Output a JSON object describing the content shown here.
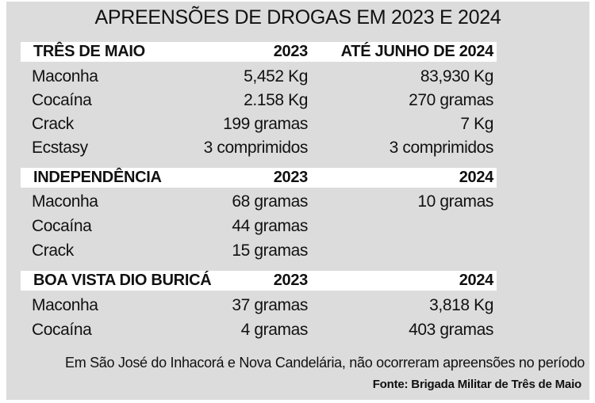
{
  "title": "APREENSÕES DE DROGAS EM 2023 E 2024",
  "sections": [
    {
      "name": "TRÊS DE MAIO",
      "col1": "2023",
      "col2": "ATÉ  JUNHO DE 2024",
      "rows": [
        {
          "drug": "Maconha",
          "v2023": "5,452 Kg",
          "v2024": "83,930 Kg"
        },
        {
          "drug": "Cocaína",
          "v2023": "2.158 Kg",
          "v2024": "270 gramas"
        },
        {
          "drug": "Crack",
          "v2023": "199 gramas",
          "v2024": "7 Kg"
        },
        {
          "drug": "Ecstasy",
          "v2023": "3 comprimidos",
          "v2024": "3 comprimidos"
        }
      ]
    },
    {
      "name": "INDEPENDÊNCIA",
      "col1": "2023",
      "col2": "2024",
      "rows": [
        {
          "drug": "Maconha",
          "v2023": "68 gramas",
          "v2024": "10 gramas"
        },
        {
          "drug": "Cocaína",
          "v2023": "44 gramas",
          "v2024": ""
        },
        {
          "drug": "Crack",
          "v2023": "15 gramas",
          "v2024": ""
        }
      ]
    },
    {
      "name": "BOA VISTA DIO BURICÁ",
      "col1": "2023",
      "col2": "2024",
      "rows": [
        {
          "drug": "Maconha",
          "v2023": "37 gramas",
          "v2024": "3,818  Kg"
        },
        {
          "drug": "Cocaína",
          "v2023": "4 gramas",
          "v2024": "403 gramas"
        }
      ]
    }
  ],
  "note": "Em São José do Inhacorá e Nova Candelária, não ocorreram apreensões no período",
  "source": "Fonte: Brigada Militar de Três de Maio"
}
